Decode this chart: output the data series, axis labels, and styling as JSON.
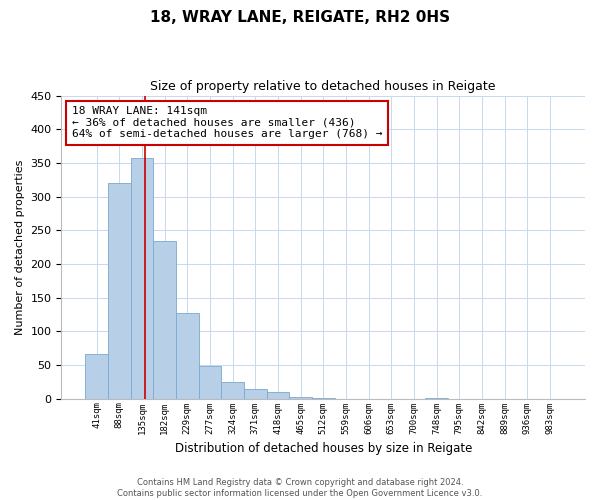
{
  "title": "18, WRAY LANE, REIGATE, RH2 0HS",
  "subtitle": "Size of property relative to detached houses in Reigate",
  "xlabel": "Distribution of detached houses by size in Reigate",
  "ylabel": "Number of detached properties",
  "bin_labels": [
    "41sqm",
    "88sqm",
    "135sqm",
    "182sqm",
    "229sqm",
    "277sqm",
    "324sqm",
    "371sqm",
    "418sqm",
    "465sqm",
    "512sqm",
    "559sqm",
    "606sqm",
    "653sqm",
    "700sqm",
    "748sqm",
    "795sqm",
    "842sqm",
    "889sqm",
    "936sqm",
    "983sqm"
  ],
  "bar_values": [
    67,
    320,
    358,
    234,
    127,
    49,
    25,
    15,
    10,
    3,
    1,
    0,
    0,
    0,
    0,
    1,
    0,
    0,
    0,
    0,
    0
  ],
  "bar_color": "#b8cfe8",
  "bar_edge_color": "#7aaad0",
  "vline_x": 2.13,
  "annotation_title": "18 WRAY LANE: 141sqm",
  "annotation_line1": "← 36% of detached houses are smaller (436)",
  "annotation_line2": "64% of semi-detached houses are larger (768) →",
  "ylim": [
    0,
    450
  ],
  "yticks": [
    0,
    50,
    100,
    150,
    200,
    250,
    300,
    350,
    400,
    450
  ],
  "vline_color": "#cc0000",
  "annotation_box_edgecolor": "#cc0000",
  "grid_color": "#c8d8ee",
  "footer1": "Contains HM Land Registry data © Crown copyright and database right 2024.",
  "footer2": "Contains public sector information licensed under the Open Government Licence v3.0."
}
